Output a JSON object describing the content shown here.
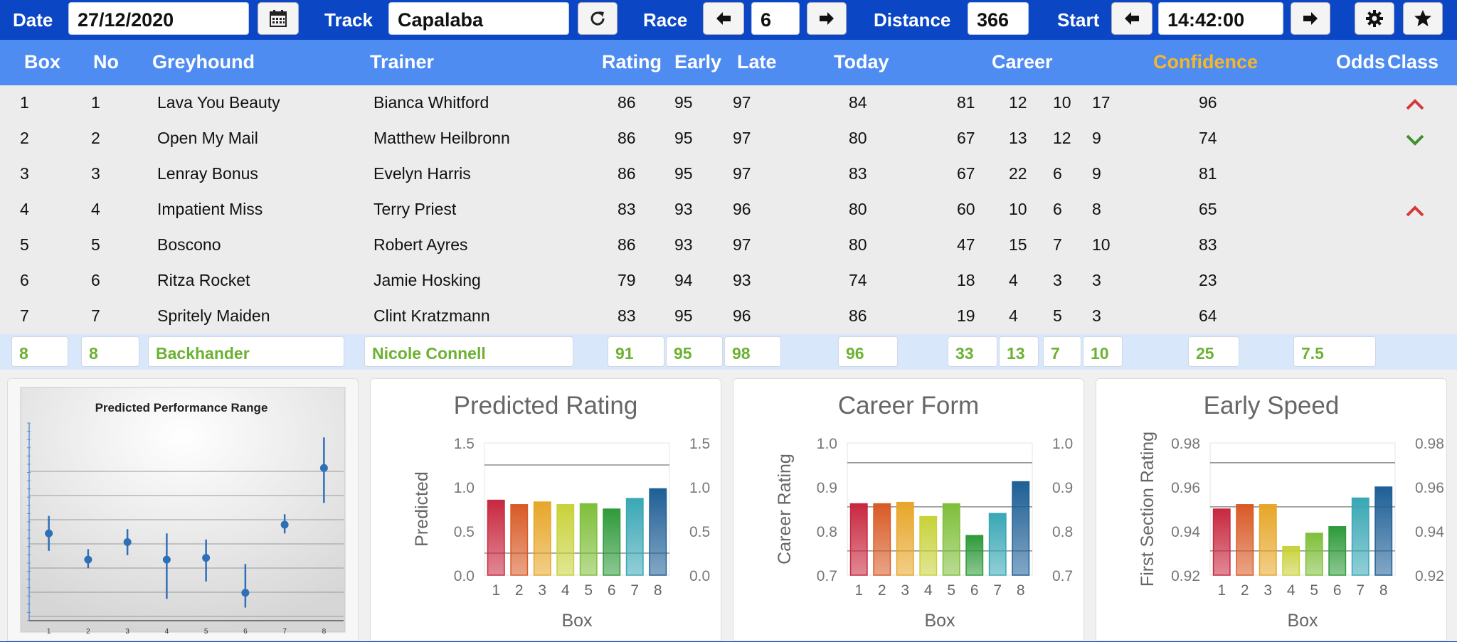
{
  "toolbar": {
    "date_label": "Date",
    "date_value": "27/12/2020",
    "track_label": "Track",
    "track_value": "Capalaba",
    "race_label": "Race",
    "race_value": "6",
    "distance_label": "Distance",
    "distance_value": "366",
    "start_label": "Start",
    "start_value": "14:42:00"
  },
  "columns": {
    "box": "Box",
    "no": "No",
    "greyhound": "Greyhound",
    "trainer": "Trainer",
    "rating": "Rating",
    "early": "Early",
    "late": "Late",
    "today": "Today",
    "career": "Career",
    "confidence": "Confidence",
    "odds": "Odds",
    "class": "Class"
  },
  "runners": [
    {
      "box": "1",
      "no": "1",
      "name": "Lava You Beauty",
      "trainer": "Bianca Whitford",
      "rating": "86",
      "early": "95",
      "late": "97",
      "today": "84",
      "career": "81",
      "c1": "12",
      "c2": "10",
      "c3": "17",
      "confidence": "96",
      "class": "up"
    },
    {
      "box": "2",
      "no": "2",
      "name": "Open My Mail",
      "trainer": "Matthew Heilbronn",
      "rating": "86",
      "early": "95",
      "late": "97",
      "today": "80",
      "career": "67",
      "c1": "13",
      "c2": "12",
      "c3": "9",
      "confidence": "74",
      "class": "down"
    },
    {
      "box": "3",
      "no": "3",
      "name": "Lenray Bonus",
      "trainer": "Evelyn Harris",
      "rating": "86",
      "early": "95",
      "late": "97",
      "today": "83",
      "career": "67",
      "c1": "22",
      "c2": "6",
      "c3": "9",
      "confidence": "81",
      "class": ""
    },
    {
      "box": "4",
      "no": "4",
      "name": "Impatient Miss",
      "trainer": "Terry Priest",
      "rating": "83",
      "early": "93",
      "late": "96",
      "today": "80",
      "career": "60",
      "c1": "10",
      "c2": "6",
      "c3": "8",
      "confidence": "65",
      "class": "up"
    },
    {
      "box": "5",
      "no": "5",
      "name": "Boscono",
      "trainer": "Robert Ayres",
      "rating": "86",
      "early": "93",
      "late": "97",
      "today": "80",
      "career": "47",
      "c1": "15",
      "c2": "7",
      "c3": "10",
      "confidence": "83",
      "class": ""
    },
    {
      "box": "6",
      "no": "6",
      "name": "Ritza Rocket",
      "trainer": "Jamie Hosking",
      "rating": "79",
      "early": "94",
      "late": "93",
      "today": "74",
      "career": "18",
      "c1": "4",
      "c2": "3",
      "c3": "3",
      "confidence": "23",
      "class": ""
    },
    {
      "box": "7",
      "no": "7",
      "name": "Spritely Maiden",
      "trainer": "Clint Kratzmann",
      "rating": "83",
      "early": "95",
      "late": "96",
      "today": "86",
      "career": "19",
      "c1": "4",
      "c2": "5",
      "c3": "3",
      "confidence": "64",
      "class": ""
    }
  ],
  "selected": {
    "box": "8",
    "no": "8",
    "name": "Backhander",
    "trainer": "Nicole Connell",
    "rating": "91",
    "early": "95",
    "late": "98",
    "today": "96",
    "career": "33",
    "c1": "13",
    "c2": "7",
    "c3": "10",
    "confidence": "25",
    "odds": "7.5"
  },
  "colors": {
    "topbar": "#0b46c4",
    "header": "#4e8cf2",
    "confidence": "#f5b62a",
    "selected_text": "#6db132",
    "up": "#d33a3a",
    "down": "#3e8f2f"
  },
  "chart_data": [
    {
      "type": "scatter",
      "title": "Predicted Performance Range",
      "x": [
        1,
        2,
        3,
        4,
        5,
        6,
        7,
        8
      ],
      "y": [
        0.8,
        0.5,
        0.7,
        0.5,
        0.52,
        0.12,
        0.9,
        1.55
      ],
      "low": [
        0.6,
        0.4,
        0.55,
        0.05,
        0.25,
        -0.05,
        0.8,
        1.15
      ],
      "high": [
        1.0,
        0.62,
        0.85,
        0.8,
        0.73,
        0.45,
        1.02,
        1.9
      ],
      "grid": true
    },
    {
      "type": "bar",
      "title": "Predicted Rating",
      "xlabel": "Box",
      "ylabel": "Predicted",
      "categories": [
        "1",
        "2",
        "3",
        "4",
        "5",
        "6",
        "7",
        "8"
      ],
      "values": [
        0.85,
        0.8,
        0.83,
        0.8,
        0.81,
        0.75,
        0.87,
        0.98
      ],
      "ylim": [
        0.0,
        1.5
      ],
      "yticks": [
        "0.0",
        "0.5",
        "1.0",
        "1.5"
      ],
      "ref_lines": [
        0.25,
        1.25
      ]
    },
    {
      "type": "bar",
      "title": "Career Form",
      "xlabel": "Box",
      "ylabel": "Career Rating",
      "categories": [
        "1",
        "2",
        "3",
        "4",
        "5",
        "6",
        "7",
        "8"
      ],
      "values": [
        0.862,
        0.862,
        0.865,
        0.833,
        0.862,
        0.79,
        0.84,
        0.912
      ],
      "ylim": [
        0.7,
        1.0
      ],
      "yticks": [
        "0.7",
        "0.8",
        "0.9",
        "1.0"
      ],
      "ref_lines": [
        0.755,
        0.855,
        0.955
      ]
    },
    {
      "type": "bar",
      "title": "Early Speed",
      "xlabel": "Box",
      "ylabel": "First Section Rating",
      "categories": [
        "1",
        "2",
        "3",
        "4",
        "5",
        "6",
        "7",
        "8"
      ],
      "values": [
        0.95,
        0.952,
        0.952,
        0.933,
        0.939,
        0.942,
        0.955,
        0.96
      ],
      "ylim": [
        0.92,
        0.98
      ],
      "yticks": [
        "0.92",
        "0.94",
        "0.96",
        "0.98"
      ],
      "ref_lines": [
        0.931,
        0.951,
        0.971
      ]
    }
  ]
}
